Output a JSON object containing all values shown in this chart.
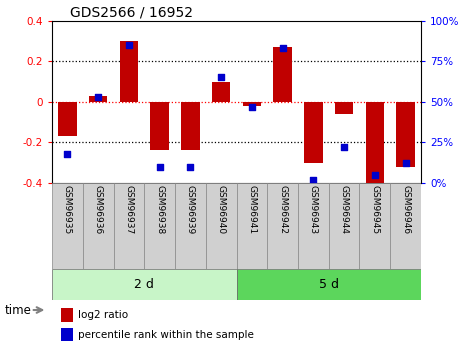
{
  "title": "GDS2566 / 16952",
  "samples": [
    "GSM96935",
    "GSM96936",
    "GSM96937",
    "GSM96938",
    "GSM96939",
    "GSM96940",
    "GSM96941",
    "GSM96942",
    "GSM96943",
    "GSM96944",
    "GSM96945",
    "GSM96946"
  ],
  "log2_ratio": [
    -0.17,
    0.03,
    0.3,
    -0.24,
    -0.24,
    0.1,
    -0.02,
    0.27,
    -0.3,
    -0.06,
    -0.41,
    -0.32
  ],
  "percentile_rank": [
    18,
    53,
    85,
    10,
    10,
    65,
    47,
    83,
    2,
    22,
    5,
    12
  ],
  "group_labels": [
    "2 d",
    "5 d"
  ],
  "group_colors": [
    "#c8f5c8",
    "#5cd65c"
  ],
  "bar_color": "#c00000",
  "dot_color": "#0000cc",
  "ylim": [
    -0.4,
    0.4
  ],
  "right_ylim": [
    0,
    100
  ],
  "right_yticks": [
    0,
    25,
    50,
    75,
    100
  ],
  "right_yticklabels": [
    "0%",
    "25%",
    "50%",
    "75%",
    "100%"
  ],
  "left_yticks": [
    -0.4,
    -0.2,
    0.0,
    0.2,
    0.4
  ],
  "left_yticklabels": [
    "-0.4",
    "-0.2",
    "0",
    "0.2",
    "0.4"
  ],
  "hlines_dotted": [
    -0.2,
    0.2
  ],
  "hline_red": 0.0,
  "legend_entries": [
    "log2 ratio",
    "percentile rank within the sample"
  ],
  "time_label": "time",
  "bar_width": 0.6,
  "label_box_color": "#d0d0d0",
  "label_box_edge": "#888888"
}
